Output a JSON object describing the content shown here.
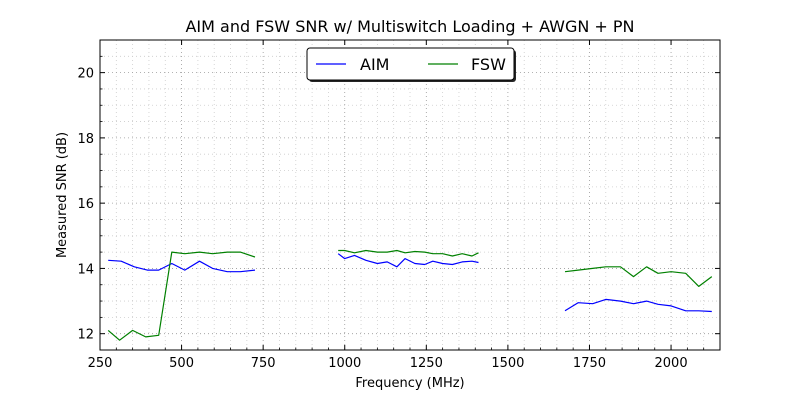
{
  "chart_data": {
    "type": "line",
    "title": "AIM and FSW SNR w/ Multiswitch Loading + AWGN + PN",
    "xlabel": "Frequency (MHz)",
    "ylabel": "Measured SNR (dB)",
    "xlim": [
      250,
      2150
    ],
    "ylim": [
      11.5,
      21
    ],
    "xticks": [
      250,
      500,
      750,
      1000,
      1250,
      1500,
      1750,
      2000
    ],
    "yticks": [
      12,
      14,
      16,
      18,
      20
    ],
    "grid": true,
    "legend_position": "top-center",
    "series": [
      {
        "name": "AIM",
        "color": "#0000ff",
        "segments": [
          {
            "x": [
              275,
              315,
              355,
              395,
              430,
              470,
              510,
              555,
              595,
              640,
              680,
              725
            ],
            "y": [
              14.25,
              14.22,
              14.05,
              13.95,
              13.95,
              14.15,
              13.95,
              14.22,
              14.0,
              13.9,
              13.9,
              13.95
            ]
          },
          {
            "x": [
              980,
              1000,
              1030,
              1065,
              1100,
              1130,
              1160,
              1185,
              1215,
              1245,
              1270,
              1300,
              1330,
              1360,
              1390,
              1410
            ],
            "y": [
              14.45,
              14.3,
              14.4,
              14.25,
              14.15,
              14.2,
              14.05,
              14.3,
              14.15,
              14.12,
              14.22,
              14.15,
              14.12,
              14.2,
              14.22,
              14.18
            ]
          },
          {
            "x": [
              1675,
              1715,
              1760,
              1800,
              1845,
              1885,
              1925,
              1960,
              2000,
              2045,
              2085,
              2125
            ],
            "y": [
              12.7,
              12.95,
              12.92,
              13.05,
              13.0,
              12.92,
              13.0,
              12.9,
              12.85,
              12.7,
              12.7,
              12.68
            ]
          }
        ]
      },
      {
        "name": "FSW",
        "color": "#008000",
        "segments": [
          {
            "x": [
              275,
              310,
              350,
              390,
              430,
              470,
              510,
              555,
              595,
              640,
              680,
              725
            ],
            "y": [
              12.1,
              11.8,
              12.1,
              11.9,
              11.95,
              14.5,
              14.45,
              14.5,
              14.45,
              14.5,
              14.5,
              14.35
            ]
          },
          {
            "x": [
              980,
              1000,
              1030,
              1065,
              1100,
              1130,
              1160,
              1185,
              1215,
              1245,
              1270,
              1300,
              1330,
              1360,
              1390,
              1410
            ],
            "y": [
              14.55,
              14.55,
              14.48,
              14.55,
              14.5,
              14.5,
              14.55,
              14.48,
              14.52,
              14.5,
              14.45,
              14.45,
              14.38,
              14.45,
              14.38,
              14.48
            ]
          },
          {
            "x": [
              1675,
              1715,
              1760,
              1800,
              1845,
              1885,
              1925,
              1960,
              2000,
              2045,
              2085,
              2125
            ],
            "y": [
              13.9,
              13.95,
              14.0,
              14.05,
              14.05,
              13.75,
              14.05,
              13.85,
              13.9,
              13.85,
              13.45,
              13.75
            ]
          }
        ]
      }
    ]
  }
}
